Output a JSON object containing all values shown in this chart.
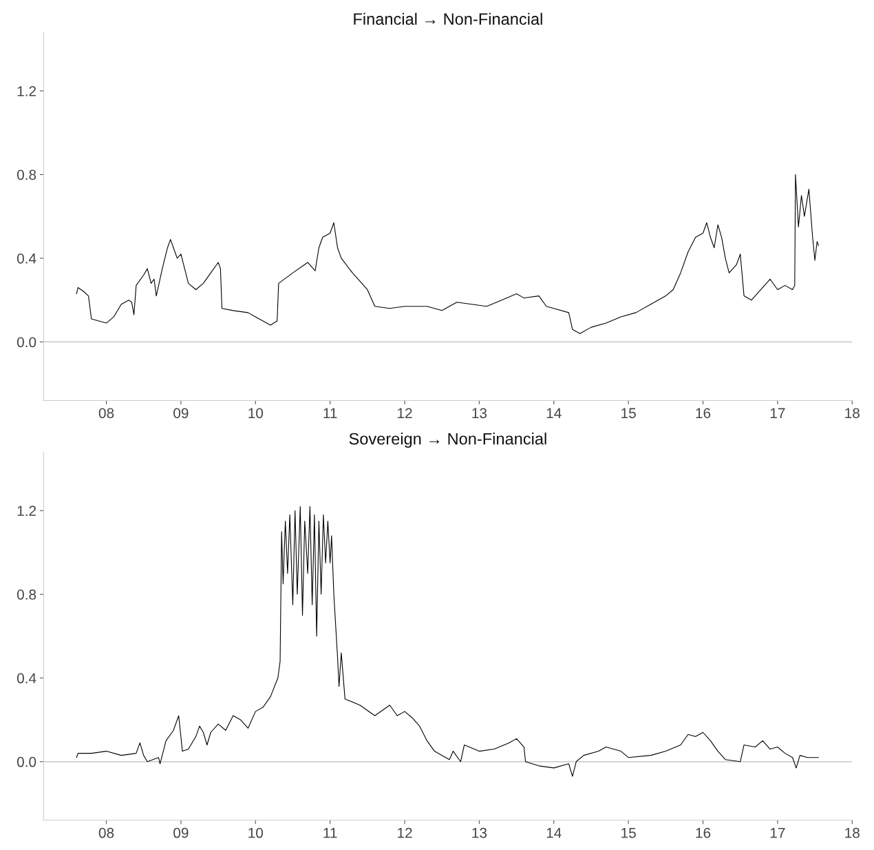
{
  "chart_data": [
    {
      "type": "line",
      "title": "Financial → Non-Financial",
      "xlim": [
        2007.16,
        2018.0
      ],
      "ylim": [
        -0.28,
        1.48
      ],
      "xticks": [
        {
          "value": 2008,
          "label": "08"
        },
        {
          "value": 2009,
          "label": "09"
        },
        {
          "value": 2010,
          "label": "10"
        },
        {
          "value": 2011,
          "label": "11"
        },
        {
          "value": 2012,
          "label": "12"
        },
        {
          "value": 2013,
          "label": "13"
        },
        {
          "value": 2014,
          "label": "14"
        },
        {
          "value": 2015,
          "label": "15"
        },
        {
          "value": 2016,
          "label": "16"
        },
        {
          "value": 2017,
          "label": "17"
        },
        {
          "value": 2018,
          "label": "18"
        }
      ],
      "yticks": [
        {
          "value": 0,
          "label": "0.0"
        },
        {
          "value": 0.4,
          "label": "0.4"
        },
        {
          "value": 0.8,
          "label": "0.8"
        },
        {
          "value": 1.2,
          "label": "1.2"
        }
      ],
      "grid": false,
      "ref_lines": [
        {
          "axis": "y",
          "value": 0,
          "color": "#bdbdbd"
        }
      ],
      "series": [
        {
          "color": "#000000",
          "x": [
            2007.6,
            2007.62,
            2007.7,
            2007.76,
            2007.8,
            2007.9,
            2008.0,
            2008.1,
            2008.2,
            2008.3,
            2008.34,
            2008.37,
            2008.4,
            2008.5,
            2008.55,
            2008.6,
            2008.64,
            2008.67,
            2008.75,
            2008.82,
            2008.86,
            2008.95,
            2009.0,
            2009.05,
            2009.1,
            2009.2,
            2009.3,
            2009.4,
            2009.5,
            2009.53,
            2009.55,
            2009.7,
            2009.9,
            2010.0,
            2010.2,
            2010.29,
            2010.31,
            2010.5,
            2010.7,
            2010.8,
            2010.85,
            2010.9,
            2011.0,
            2011.05,
            2011.1,
            2011.15,
            2011.3,
            2011.5,
            2011.6,
            2011.8,
            2012.0,
            2012.3,
            2012.5,
            2012.7,
            2012.9,
            2013.1,
            2013.3,
            2013.5,
            2013.6,
            2013.8,
            2013.9,
            2014.0,
            2014.2,
            2014.25,
            2014.35,
            2014.5,
            2014.7,
            2014.9,
            2015.1,
            2015.3,
            2015.5,
            2015.6,
            2015.7,
            2015.8,
            2015.9,
            2016.0,
            2016.05,
            2016.1,
            2016.15,
            2016.2,
            2016.25,
            2016.3,
            2016.35,
            2016.45,
            2016.5,
            2016.55,
            2016.65,
            2016.8,
            2016.9,
            2017.0,
            2017.1,
            2017.2,
            2017.23,
            2017.24,
            2017.28,
            2017.32,
            2017.36,
            2017.42,
            2017.47,
            2017.5,
            2017.53,
            2017.55
          ],
          "values": [
            0.23,
            0.26,
            0.24,
            0.22,
            0.11,
            0.1,
            0.09,
            0.12,
            0.18,
            0.2,
            0.19,
            0.13,
            0.27,
            0.32,
            0.35,
            0.28,
            0.3,
            0.22,
            0.35,
            0.45,
            0.49,
            0.4,
            0.42,
            0.35,
            0.28,
            0.25,
            0.28,
            0.33,
            0.38,
            0.35,
            0.16,
            0.15,
            0.14,
            0.12,
            0.08,
            0.1,
            0.28,
            0.33,
            0.38,
            0.34,
            0.45,
            0.5,
            0.52,
            0.57,
            0.45,
            0.4,
            0.33,
            0.25,
            0.17,
            0.16,
            0.17,
            0.17,
            0.15,
            0.19,
            0.18,
            0.17,
            0.2,
            0.23,
            0.21,
            0.22,
            0.17,
            0.16,
            0.14,
            0.06,
            0.04,
            0.07,
            0.09,
            0.12,
            0.14,
            0.18,
            0.22,
            0.25,
            0.33,
            0.43,
            0.5,
            0.52,
            0.57,
            0.5,
            0.45,
            0.56,
            0.5,
            0.4,
            0.33,
            0.37,
            0.42,
            0.22,
            0.2,
            0.26,
            0.3,
            0.25,
            0.27,
            0.25,
            0.27,
            0.8,
            0.55,
            0.7,
            0.6,
            0.73,
            0.5,
            0.39,
            0.48,
            0.46
          ]
        }
      ]
    },
    {
      "type": "line",
      "title": "Sovereign → Non-Financial",
      "xlim": [
        2007.16,
        2018.0
      ],
      "ylim": [
        -0.28,
        1.48
      ],
      "xticks": [
        {
          "value": 2008,
          "label": "08"
        },
        {
          "value": 2009,
          "label": "09"
        },
        {
          "value": 2010,
          "label": "10"
        },
        {
          "value": 2011,
          "label": "11"
        },
        {
          "value": 2012,
          "label": "12"
        },
        {
          "value": 2013,
          "label": "13"
        },
        {
          "value": 2014,
          "label": "14"
        },
        {
          "value": 2015,
          "label": "15"
        },
        {
          "value": 2016,
          "label": "16"
        },
        {
          "value": 2017,
          "label": "17"
        },
        {
          "value": 2018,
          "label": "18"
        }
      ],
      "yticks": [
        {
          "value": 0,
          "label": "0.0"
        },
        {
          "value": 0.4,
          "label": "0.4"
        },
        {
          "value": 0.8,
          "label": "0.8"
        },
        {
          "value": 1.2,
          "label": "1.2"
        }
      ],
      "grid": false,
      "ref_lines": [
        {
          "axis": "y",
          "value": 0,
          "color": "#bdbdbd"
        }
      ],
      "series": [
        {
          "color": "#000000",
          "x": [
            2007.6,
            2007.62,
            2007.8,
            2008.0,
            2008.2,
            2008.4,
            2008.45,
            2008.5,
            2008.55,
            2008.7,
            2008.72,
            2008.8,
            2008.9,
            2008.97,
            2009.02,
            2009.1,
            2009.2,
            2009.25,
            2009.3,
            2009.35,
            2009.4,
            2009.5,
            2009.6,
            2009.7,
            2009.8,
            2009.9,
            2010.0,
            2010.1,
            2010.2,
            2010.3,
            2010.33,
            2010.35,
            2010.37,
            2010.4,
            2010.43,
            2010.46,
            2010.5,
            2010.53,
            2010.56,
            2010.6,
            2010.63,
            2010.66,
            2010.7,
            2010.73,
            2010.76,
            2010.79,
            2010.82,
            2010.85,
            2010.88,
            2010.91,
            2010.94,
            2010.97,
            2011.0,
            2011.02,
            2011.05,
            2011.1,
            2011.12,
            2011.15,
            2011.2,
            2011.4,
            2011.6,
            2011.8,
            2011.9,
            2012.0,
            2012.1,
            2012.2,
            2012.3,
            2012.4,
            2012.5,
            2012.6,
            2012.65,
            2012.75,
            2012.8,
            2013.0,
            2013.2,
            2013.4,
            2013.5,
            2013.6,
            2013.62,
            2013.8,
            2014.0,
            2014.2,
            2014.25,
            2014.3,
            2014.4,
            2014.6,
            2014.7,
            2014.9,
            2015.0,
            2015.3,
            2015.5,
            2015.7,
            2015.8,
            2015.9,
            2016.0,
            2016.1,
            2016.2,
            2016.3,
            2016.5,
            2016.55,
            2016.7,
            2016.8,
            2016.9,
            2017.0,
            2017.1,
            2017.2,
            2017.25,
            2017.3,
            2017.4,
            2017.55
          ],
          "values": [
            0.02,
            0.04,
            0.04,
            0.05,
            0.03,
            0.04,
            0.09,
            0.03,
            0.0,
            0.02,
            -0.01,
            0.1,
            0.15,
            0.22,
            0.05,
            0.06,
            0.12,
            0.17,
            0.14,
            0.08,
            0.14,
            0.18,
            0.15,
            0.22,
            0.2,
            0.16,
            0.24,
            0.26,
            0.31,
            0.4,
            0.48,
            1.1,
            0.85,
            1.15,
            0.9,
            1.18,
            0.75,
            1.2,
            0.8,
            1.22,
            0.7,
            1.15,
            0.9,
            1.22,
            0.75,
            1.18,
            0.6,
            1.15,
            0.8,
            1.18,
            0.95,
            1.15,
            0.95,
            1.08,
            0.8,
            0.5,
            0.36,
            0.52,
            0.3,
            0.27,
            0.22,
            0.27,
            0.22,
            0.24,
            0.21,
            0.17,
            0.1,
            0.05,
            0.03,
            0.01,
            0.05,
            0.0,
            0.08,
            0.05,
            0.06,
            0.09,
            0.11,
            0.07,
            0.0,
            -0.02,
            -0.03,
            -0.01,
            -0.07,
            0.0,
            0.03,
            0.05,
            0.07,
            0.05,
            0.02,
            0.03,
            0.05,
            0.08,
            0.13,
            0.12,
            0.14,
            0.1,
            0.05,
            0.01,
            0.0,
            0.08,
            0.07,
            0.1,
            0.06,
            0.07,
            0.04,
            0.02,
            -0.03,
            0.03,
            0.02,
            0.02
          ]
        }
      ]
    }
  ]
}
